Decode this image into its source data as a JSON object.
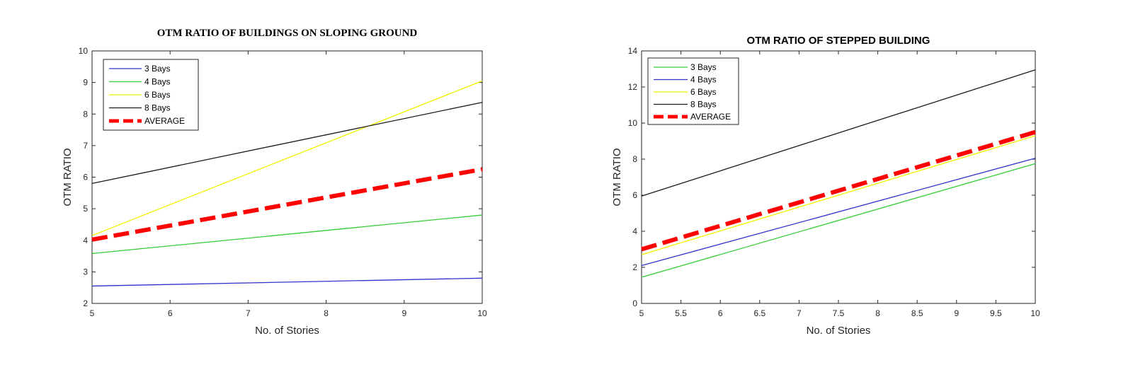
{
  "chart_data": [
    {
      "type": "line",
      "title": "OTM RATIO OF BUILDINGS ON SLOPING GROUND",
      "xlabel": "No. of Stories",
      "ylabel": "OTM RATIO",
      "xlim": [
        5,
        10
      ],
      "ylim": [
        2,
        10
      ],
      "xticks": [
        5,
        6,
        7,
        8,
        9,
        10
      ],
      "yticks": [
        2,
        3,
        4,
        5,
        6,
        7,
        8,
        9,
        10
      ],
      "grid": false,
      "legend_position": "top-left",
      "series": [
        {
          "name": "3 Bays",
          "color": "#3333cc",
          "style": "solid",
          "x": [
            5,
            10
          ],
          "y": [
            2.55,
            2.8
          ]
        },
        {
          "name": "4 Bays",
          "color": "#33cc33",
          "style": "solid",
          "x": [
            5,
            10
          ],
          "y": [
            3.58,
            4.8
          ]
        },
        {
          "name": "6 Bays",
          "color": "#f2f200",
          "style": "solid",
          "x": [
            5,
            10
          ],
          "y": [
            4.15,
            9.05
          ]
        },
        {
          "name": "8 Bays",
          "color": "#1a1a1a",
          "style": "solid",
          "x": [
            5,
            10
          ],
          "y": [
            5.8,
            8.37
          ]
        },
        {
          "name": "AVERAGE",
          "color": "#ff0000",
          "style": "dashed",
          "x": [
            5,
            10
          ],
          "y": [
            4.02,
            6.25
          ]
        }
      ]
    },
    {
      "type": "line",
      "title": "OTM RATIO OF STEPPED BUILDING",
      "xlabel": "No. of Stories",
      "ylabel": "OTM RATIO",
      "xlim": [
        5,
        10
      ],
      "ylim": [
        0,
        14
      ],
      "xticks": [
        5,
        5.5,
        6,
        6.5,
        7,
        7.5,
        8,
        8.5,
        9,
        9.5,
        10
      ],
      "yticks": [
        0,
        2,
        4,
        6,
        8,
        10,
        12,
        14
      ],
      "grid": false,
      "legend_position": "top-left",
      "series": [
        {
          "name": "3 Bays",
          "color": "#33cc33",
          "style": "solid",
          "x": [
            5,
            10
          ],
          "y": [
            1.45,
            7.75
          ]
        },
        {
          "name": "4 Bays",
          "color": "#3333cc",
          "style": "solid",
          "x": [
            5,
            10
          ],
          "y": [
            2.1,
            8.05
          ]
        },
        {
          "name": "6 Bays",
          "color": "#f2f200",
          "style": "solid",
          "x": [
            5,
            10
          ],
          "y": [
            2.7,
            9.3
          ]
        },
        {
          "name": "8 Bays",
          "color": "#1a1a1a",
          "style": "solid",
          "x": [
            5,
            10
          ],
          "y": [
            5.95,
            12.95
          ]
        },
        {
          "name": "AVERAGE",
          "color": "#ff0000",
          "style": "dashed",
          "x": [
            5,
            10
          ],
          "y": [
            3.0,
            9.5
          ]
        }
      ]
    }
  ]
}
